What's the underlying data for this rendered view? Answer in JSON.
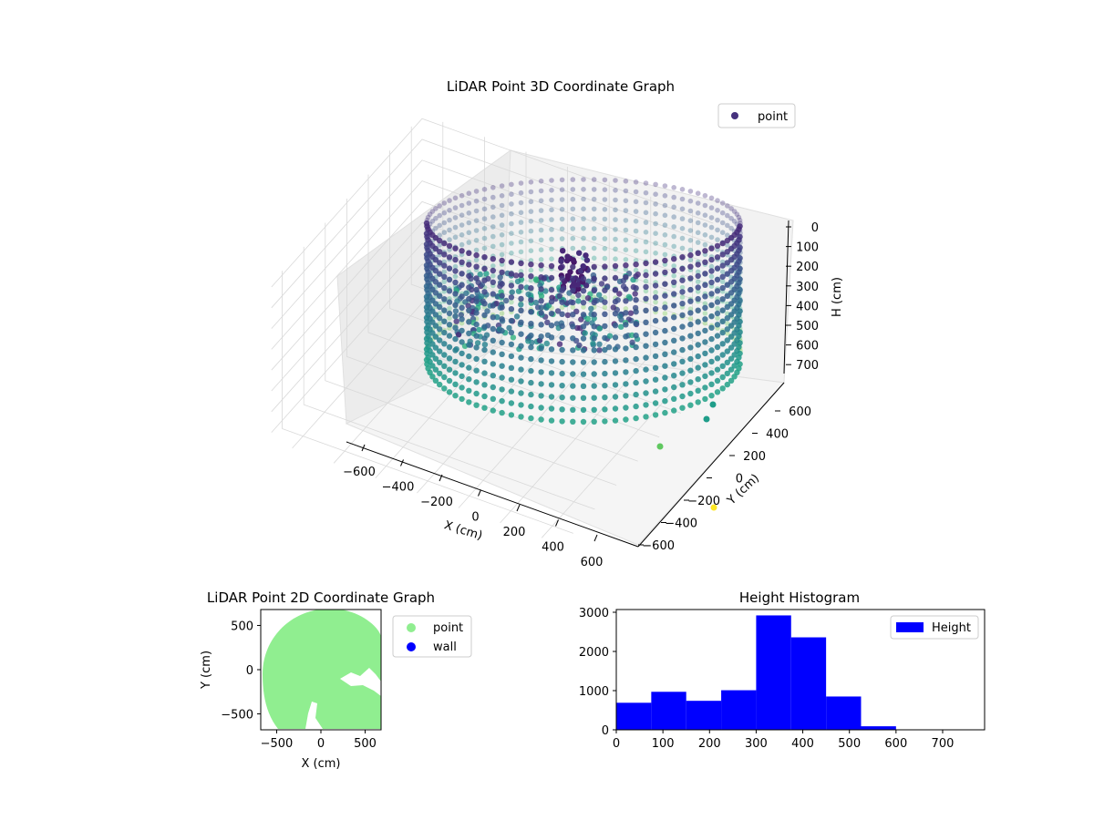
{
  "chart_data": [
    {
      "type": "scatter3d",
      "title": "LiDAR Point 3D Coordinate Graph",
      "xlabel": "X (cm)",
      "ylabel": "Y (cm)",
      "zlabel": "H (cm)",
      "xlim": [
        -700,
        700
      ],
      "ylim": [
        -700,
        700
      ],
      "zlim": [
        0,
        750
      ],
      "z_inverted": true,
      "x_ticks": [
        "−600",
        "−400",
        "−200",
        "0",
        "200",
        "400",
        "600"
      ],
      "y_ticks": [
        "−600",
        "−400",
        "−200",
        "0",
        "200",
        "400",
        "600"
      ],
      "z_ticks": [
        "0",
        "100",
        "200",
        "300",
        "400",
        "500",
        "600",
        "700"
      ],
      "colormap": "viridis",
      "legend": [
        "point"
      ],
      "legend_placement": "upper-right",
      "shape": "cylindrical wall of points, radius ~650 cm, heights 0–720 cm, with interior clutter",
      "outliers": [
        {
          "x": 350,
          "y": -300,
          "h": 600
        },
        {
          "x": 300,
          "y": -550,
          "h": 700
        }
      ]
    },
    {
      "type": "scatter",
      "title": "LiDAR Point 2D Coordinate Graph",
      "xlabel": "X (cm)",
      "ylabel": "Y (cm)",
      "xlim": [
        -680,
        680
      ],
      "ylim": [
        -680,
        680
      ],
      "x_ticks": [
        "−500",
        "0",
        "500"
      ],
      "y_ticks": [
        "−500",
        "0",
        "500"
      ],
      "series": [
        {
          "name": "point",
          "color": "#90ee90"
        },
        {
          "name": "wall",
          "color": "#0000ff"
        }
      ],
      "legend_placement": "outside-right",
      "shape": "filled disk of radius ~650 cm centered near (0,0) with small gaps"
    },
    {
      "type": "bar",
      "title": "Height Histogram",
      "xlabel": "",
      "ylabel": "",
      "series": [
        {
          "name": "Height",
          "color": "#0000ff"
        }
      ],
      "bin_edges": [
        0,
        75,
        150,
        225,
        300,
        375,
        450,
        525,
        600,
        675,
        750
      ],
      "values": [
        690,
        970,
        740,
        1010,
        2920,
        2360,
        850,
        90,
        5,
        5
      ],
      "xlim": [
        0,
        790
      ],
      "ylim": [
        0,
        3070
      ],
      "x_ticks": [
        "0",
        "100",
        "200",
        "300",
        "400",
        "500",
        "600",
        "700"
      ],
      "y_ticks": [
        "0",
        "1000",
        "2000",
        "3000"
      ],
      "legend_placement": "upper-right"
    }
  ]
}
